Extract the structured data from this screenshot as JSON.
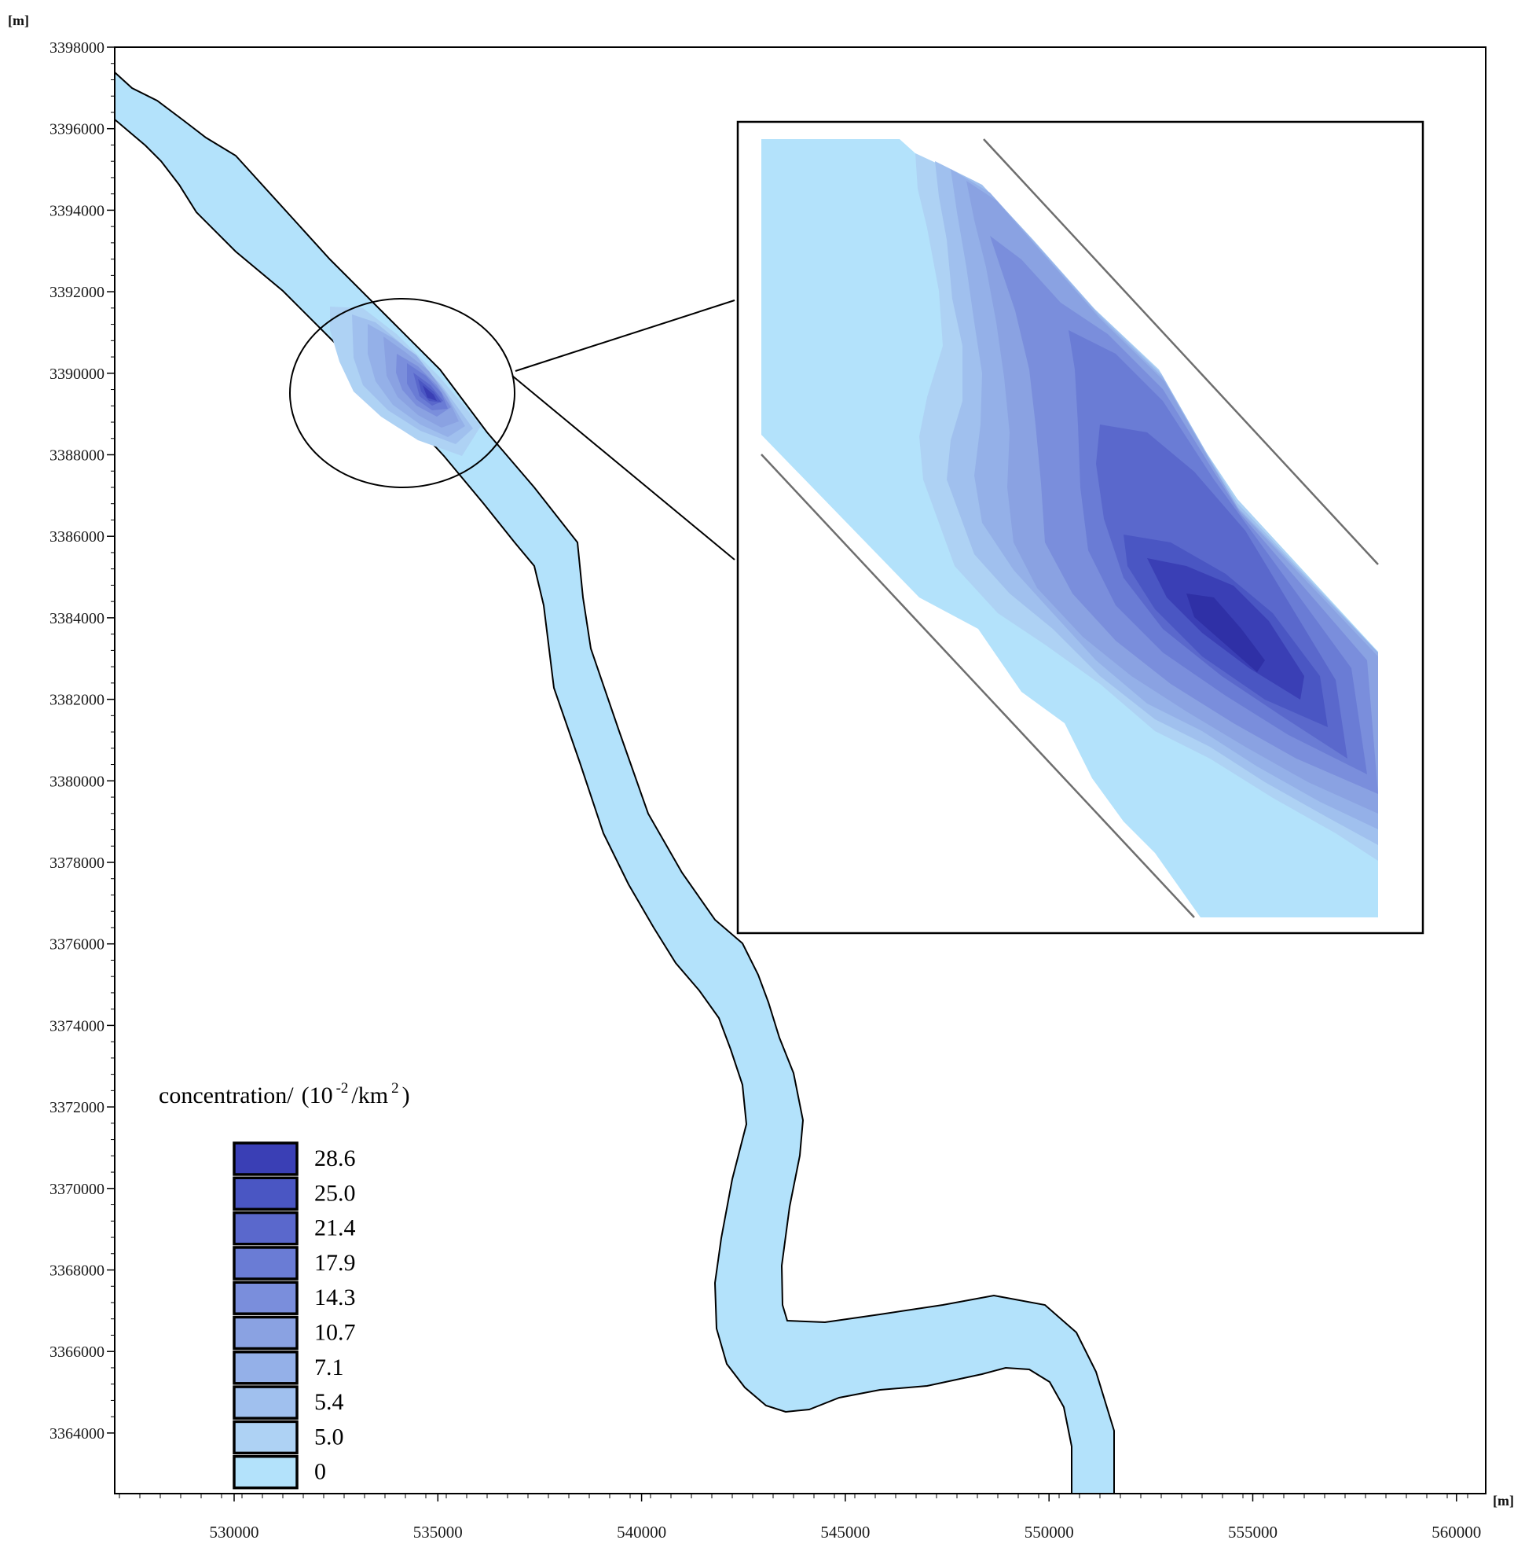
{
  "axes": {
    "x_unit": "[m]",
    "y_unit": "[m]",
    "x_ticks": [
      "530000",
      "535000",
      "540000",
      "545000",
      "550000",
      "555000",
      "560000"
    ],
    "y_ticks": [
      "3398000",
      "3396000",
      "3394000",
      "3392000",
      "3390000",
      "3388000",
      "3386000",
      "3384000",
      "3382000",
      "3380000",
      "3378000",
      "3376000",
      "3374000",
      "3372000",
      "3370000",
      "3368000",
      "3366000",
      "3364000"
    ]
  },
  "legend": {
    "title_main": "concentration/",
    "title_paren_open": "(10",
    "title_exp1": "-2",
    "title_mid": "/km",
    "title_exp2": "2",
    "title_paren_close": ")",
    "entries": [
      {
        "label": "28.6",
        "color": "#3a3fb5"
      },
      {
        "label": "25.0",
        "color": "#4a56c3"
      },
      {
        "label": "21.4",
        "color": "#5a68cc"
      },
      {
        "label": "17.9",
        "color": "#6a7cd5"
      },
      {
        "label": "14.3",
        "color": "#7a8edc"
      },
      {
        "label": "10.7",
        "color": "#8aa2e2"
      },
      {
        "label": "7.1",
        "color": "#94b0e8"
      },
      {
        "label": "5.4",
        "color": "#a0c0ee"
      },
      {
        "label": "5.0",
        "color": "#aed2f4"
      },
      {
        "label": "0",
        "color": "#b3e2fb"
      }
    ]
  },
  "colors": {
    "water": "#b3e2fb",
    "bank_line": "#000000",
    "inset_bank_line": "#6e6e6e"
  }
}
